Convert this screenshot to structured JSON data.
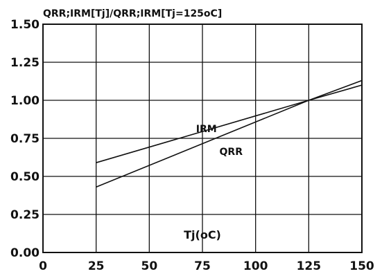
{
  "chart_data": {
    "type": "line",
    "title": "QRR;IRM[Tj]/QRR;IRM[Tj=125oC]",
    "xlabel": "Tj(oC)",
    "ylabel": "",
    "xlim": [
      0,
      150
    ],
    "ylim": [
      0,
      1.5
    ],
    "grid": true,
    "x_ticks": [
      "0",
      "25",
      "50",
      "75",
      "100",
      "125",
      "150"
    ],
    "y_ticks": [
      "0.00",
      "0.25",
      "0.50",
      "0.75",
      "1.00",
      "1.25",
      "1.50"
    ],
    "series": [
      {
        "name": "IRM",
        "x": [
          25,
          125,
          150
        ],
        "y": [
          0.59,
          1.0,
          1.1
        ]
      },
      {
        "name": "QRR",
        "x": [
          25,
          125,
          150
        ],
        "y": [
          0.43,
          1.0,
          1.13
        ]
      }
    ],
    "annotations": [
      {
        "text": "IRM",
        "x": 72,
        "y": 0.79
      },
      {
        "text": "QRR",
        "x": 83,
        "y": 0.64
      }
    ]
  }
}
